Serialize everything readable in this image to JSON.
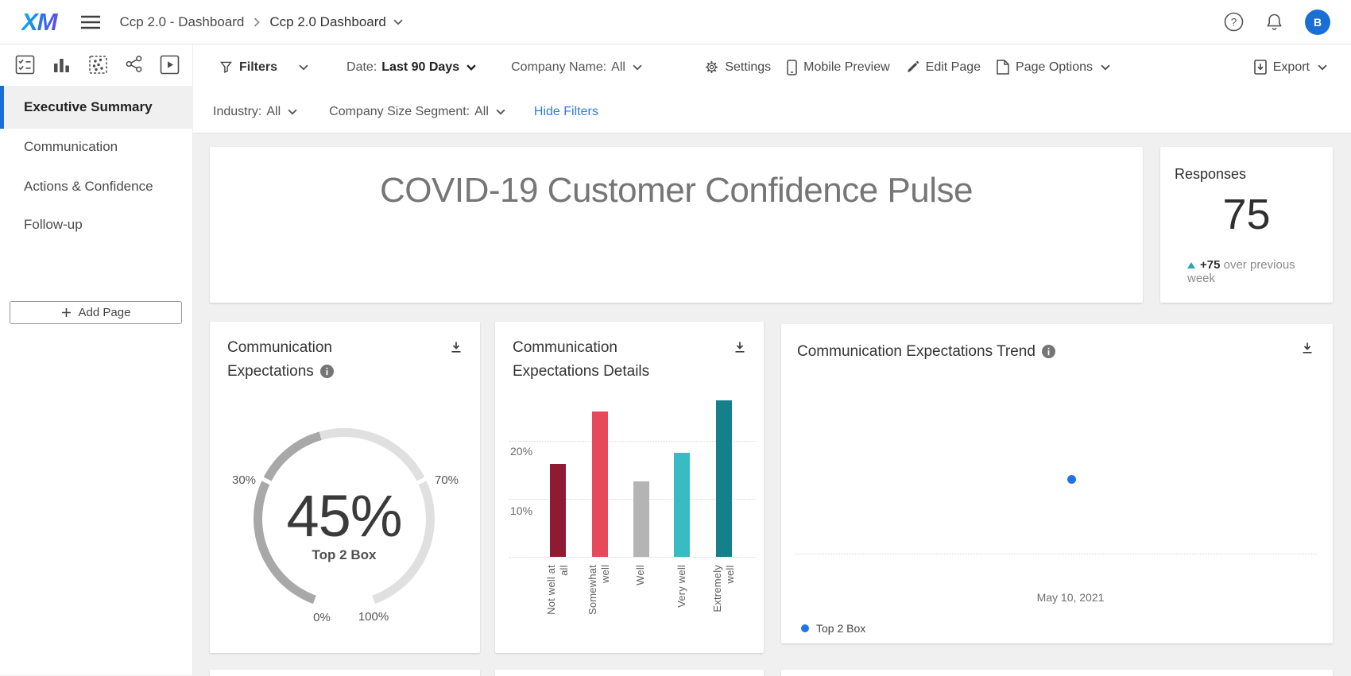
{
  "brand": {
    "logo": "XM"
  },
  "header": {
    "breadcrumb": {
      "project": "Ccp 2.0 - Dashboard",
      "page": "Ccp 2.0 Dashboard"
    },
    "avatar_initial": "B"
  },
  "filter_bar": {
    "filters_label": "Filters",
    "date": {
      "label": "Date:",
      "value": "Last 90 Days"
    },
    "company_name": {
      "label": "Company Name:",
      "value": "All"
    },
    "industry": {
      "label": "Industry:",
      "value": "All"
    },
    "company_size": {
      "label": "Company Size Segment:",
      "value": "All"
    },
    "hide_filters": "Hide Filters",
    "actions": {
      "settings": "Settings",
      "mobile_preview": "Mobile Preview",
      "edit_page": "Edit Page",
      "page_options": "Page Options",
      "export": "Export"
    }
  },
  "sidebar": {
    "items": [
      {
        "label": "Executive Summary",
        "active": true
      },
      {
        "label": "Communication",
        "active": false
      },
      {
        "label": "Actions & Confidence",
        "active": false
      },
      {
        "label": "Follow-up",
        "active": false
      }
    ],
    "add_page_label": "Add Page"
  },
  "banner": {
    "title": "COVID-19 Customer Confidence Pulse"
  },
  "responses_card": {
    "title": "Responses",
    "value": "75",
    "delta_value": "+75",
    "delta_text": "over previous week"
  },
  "gauge_card": {
    "title_line1": "Communication",
    "title_line2": "Expectations",
    "center_value": "45%",
    "center_label": "Top 2 Box",
    "tick_left": "30%",
    "tick_right": "70%",
    "tick_min": "0%",
    "tick_max": "100%"
  },
  "details_card": {
    "title_line1": "Communication",
    "title_line2": "Expectations Details",
    "y_tick_20": "20%",
    "y_tick_10": "10%"
  },
  "trend_card": {
    "title": "Communication Expectations Trend",
    "x_label": "May 10, 2021",
    "legend_label": "Top 2 Box"
  },
  "colors": {
    "accent_blue": "#1a6fd4",
    "link_blue": "#2b7de0",
    "trend_blue": "#2273e8",
    "delta_teal": "#2aa5b8"
  },
  "chart_data": [
    {
      "type": "gauge",
      "title": "Communication Expectations",
      "value": 45,
      "value_label": "45%",
      "center_label": "Top 2 Box",
      "scale": [
        0,
        100
      ],
      "tick_labels": [
        "0%",
        "30%",
        "70%",
        "100%"
      ],
      "fill_color": "#a8a8a8",
      "track_color": "#e0e0e0"
    },
    {
      "type": "bar",
      "title": "Communication Expectations Details",
      "categories": [
        "Not well at all",
        "Somewhat well",
        "Well",
        "Very well",
        "Extremely well"
      ],
      "categories_wrapped": [
        "Not well at\nall",
        "Somewhat\nwell",
        "Well",
        "Very well",
        "Extremely\nwell"
      ],
      "values": [
        16,
        25,
        13,
        18,
        27
      ],
      "unit": "%",
      "colors": [
        "#8f1b32",
        "#e8495a",
        "#b4b4b4",
        "#38bcc4",
        "#13808c"
      ],
      "ylim": [
        0,
        30
      ],
      "yticks": [
        10,
        20
      ],
      "grid": "dotted"
    },
    {
      "type": "scatter",
      "title": "Communication Expectations Trend",
      "series": [
        {
          "name": "Top 2 Box",
          "color": "#2273e8",
          "points": [
            {
              "x": "May 10, 2021"
            }
          ]
        }
      ],
      "legend_position": "bottom-left"
    }
  ]
}
